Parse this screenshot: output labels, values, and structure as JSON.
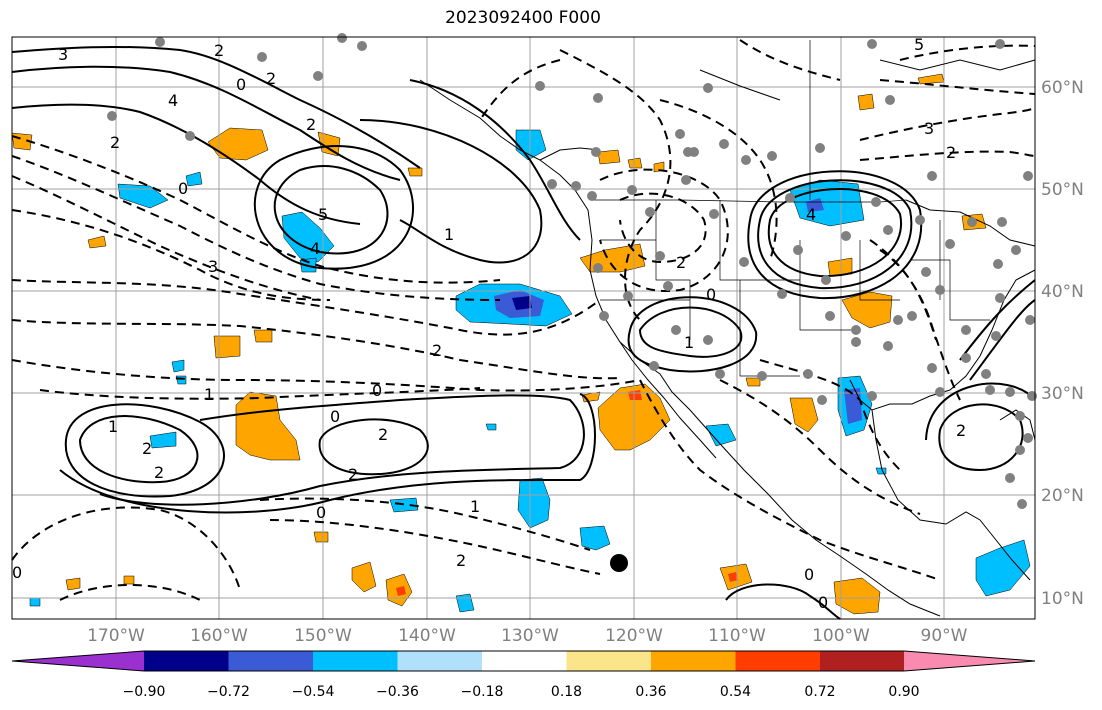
{
  "title": "2023092400 F000",
  "lat_labels": [
    "60°N",
    "50°N",
    "40°N",
    "30°N",
    "20°N",
    "10°N"
  ],
  "lon_labels": [
    "170°W",
    "160°W",
    "150°W",
    "140°W",
    "130°W",
    "120°W",
    "110°W",
    "100°W",
    "90°W"
  ],
  "colorbar": {
    "colors": [
      "#9b30d0",
      "#00008b",
      "#3b5bd6",
      "#00bfff",
      "#b0e0fa",
      "#ffffff",
      "#fbe58a",
      "#ffa500",
      "#ff3d00",
      "#b02020",
      "#f98bb0"
    ],
    "tick_labels": [
      "−0.90",
      "−0.72",
      "−0.54",
      "−0.36",
      "−0.18",
      "0.18",
      "0.36",
      "0.54",
      "0.72",
      "0.90"
    ]
  },
  "contour_labels": [
    "3",
    "2",
    "2",
    "0",
    "4",
    "2",
    "0",
    "5",
    "4",
    "1",
    "3",
    "2",
    "2",
    "1",
    "0",
    "2",
    "2",
    "1",
    "0",
    "2",
    "2",
    "0",
    "1",
    "2",
    "0",
    "5",
    "3",
    "2",
    "4",
    "0",
    "1",
    "2",
    "0",
    "0",
    "2"
  ],
  "colors": {
    "land_border": "#000000",
    "grid": "#a0a0a0",
    "positive": "#ffa500",
    "negative": "#00bfff"
  }
}
